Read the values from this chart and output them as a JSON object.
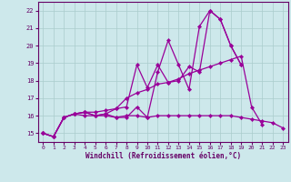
{
  "xlabel": "Windchill (Refroidissement éolien,°C)",
  "background_color": "#cde8eb",
  "line_color": "#990099",
  "grid_color": "#aacccc",
  "xlim": [
    -0.5,
    23.5
  ],
  "ylim": [
    14.5,
    22.5
  ],
  "yticks": [
    15,
    16,
    17,
    18,
    19,
    20,
    21,
    22
  ],
  "xticks": [
    0,
    1,
    2,
    3,
    4,
    5,
    6,
    7,
    8,
    9,
    10,
    11,
    12,
    13,
    14,
    15,
    16,
    17,
    18,
    19,
    20,
    21,
    22,
    23
  ],
  "series": [
    {
      "x": [
        0,
        1,
        2,
        3,
        4,
        5,
        6,
        7,
        8,
        9,
        10,
        11,
        12,
        13,
        14,
        15,
        16,
        17,
        18,
        19
      ],
      "y": [
        15.0,
        14.8,
        15.9,
        16.1,
        16.2,
        16.0,
        16.1,
        15.9,
        15.9,
        16.5,
        15.9,
        18.5,
        20.3,
        18.9,
        17.5,
        21.1,
        22.0,
        21.5,
        20.0,
        18.9
      ]
    },
    {
      "x": [
        0,
        1,
        2,
        3,
        4,
        5,
        6,
        7,
        8,
        9,
        10,
        11,
        12,
        13,
        14,
        15,
        16,
        17,
        18,
        19
      ],
      "y": [
        15.0,
        14.8,
        15.9,
        16.1,
        16.2,
        16.0,
        16.1,
        16.4,
        16.5,
        18.9,
        17.6,
        18.9,
        17.9,
        18.0,
        18.8,
        18.5,
        22.0,
        21.5,
        20.0,
        18.9
      ]
    },
    {
      "x": [
        0,
        1,
        2,
        3,
        4,
        5,
        6,
        7,
        8,
        9,
        10,
        11,
        12,
        13,
        14,
        15,
        16,
        17,
        18,
        19,
        20,
        21,
        22,
        23
      ],
      "y": [
        15.0,
        14.8,
        15.9,
        16.1,
        16.0,
        16.0,
        16.0,
        15.9,
        16.0,
        16.0,
        15.9,
        16.0,
        16.0,
        16.0,
        16.0,
        16.0,
        16.0,
        16.0,
        16.0,
        15.9,
        15.8,
        15.7,
        15.6,
        15.3
      ]
    },
    {
      "x": [
        0,
        1,
        2,
        3,
        4,
        5,
        6,
        7,
        8,
        9,
        10,
        11,
        12,
        13,
        14,
        15,
        16,
        17,
        18,
        19,
        20,
        21,
        22,
        23
      ],
      "y": [
        15.0,
        14.8,
        15.9,
        16.1,
        16.2,
        16.2,
        16.3,
        16.4,
        17.0,
        17.3,
        17.5,
        17.8,
        17.9,
        18.1,
        18.4,
        18.6,
        18.8,
        19.0,
        19.2,
        19.4,
        16.5,
        15.5,
        null,
        null
      ]
    }
  ]
}
